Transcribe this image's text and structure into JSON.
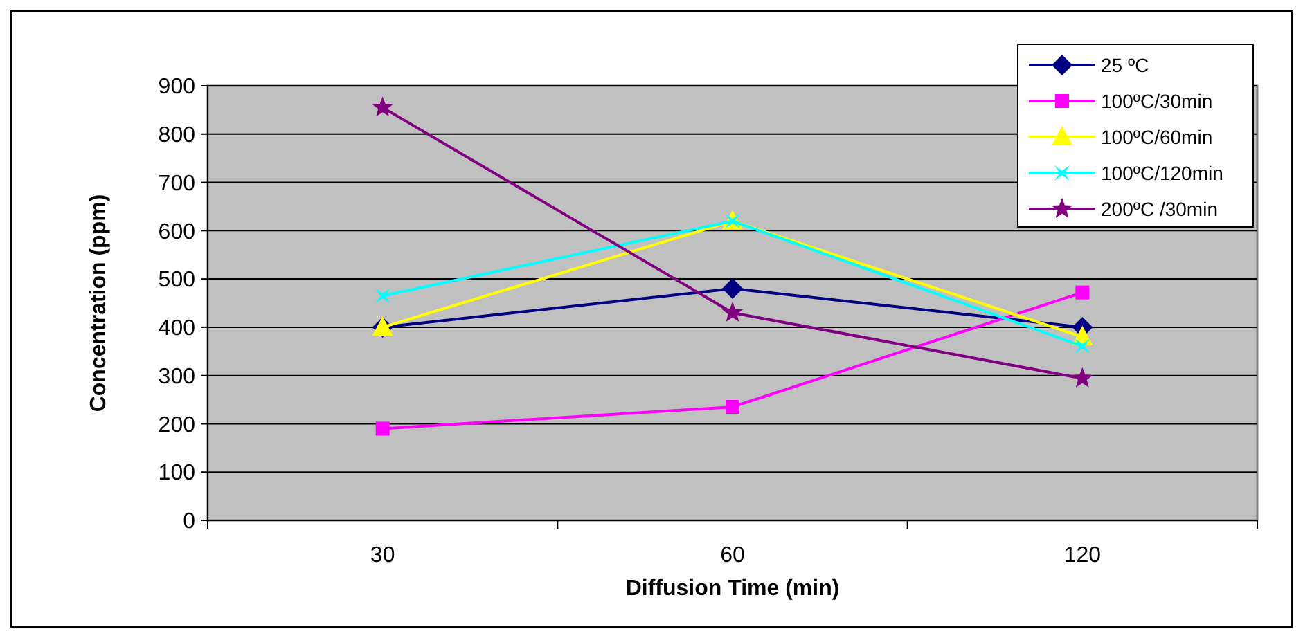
{
  "chart_data": {
    "type": "line",
    "xlabel": "Diffusion Time (min)",
    "ylabel": "Concentration (ppm)",
    "categories": [
      "30",
      "60",
      "120"
    ],
    "ylim": [
      0,
      900
    ],
    "yticks": [
      0,
      100,
      200,
      300,
      400,
      500,
      600,
      700,
      800,
      900
    ],
    "grid": "y",
    "legend": "top right",
    "series": [
      {
        "name": "25 ºC",
        "color": "#000080",
        "marker": "diamond",
        "values": [
          400,
          480,
          400
        ]
      },
      {
        "name": "100ºC/30min",
        "color": "#ff00ff",
        "marker": "square",
        "values": [
          190,
          235,
          472
        ]
      },
      {
        "name": "100ºC/60min",
        "color": "#ffff00",
        "marker": "triangle",
        "values": [
          400,
          620,
          380
        ]
      },
      {
        "name": "100ºC/120min",
        "color": "#00ffff",
        "marker": "cross",
        "values": [
          465,
          620,
          361
        ]
      },
      {
        "name": "200ºC /30min",
        "color": "#800080",
        "marker": "star",
        "values": [
          855,
          430,
          294
        ]
      }
    ]
  }
}
